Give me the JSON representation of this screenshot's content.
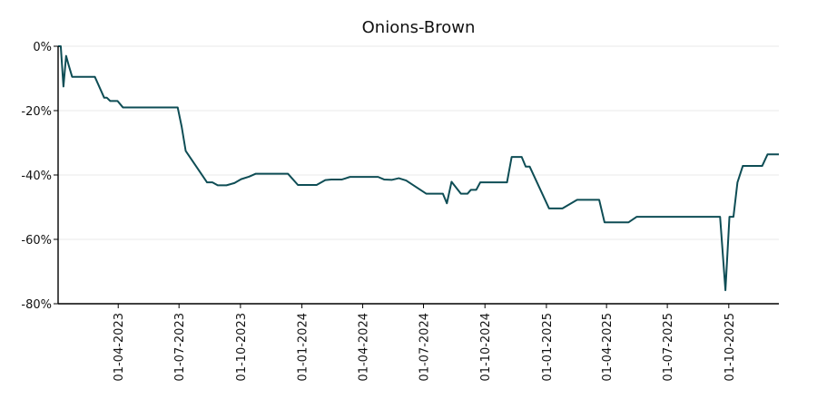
{
  "chart_data": {
    "type": "line",
    "title": "Onions-Brown",
    "xlabel": "",
    "ylabel": "",
    "ylim": [
      -80,
      0
    ],
    "xlim": [
      "2023-01-01",
      "2025-12-15"
    ],
    "grid": true,
    "line_color": "#0e4d55",
    "y_ticks": [
      0,
      -20,
      -40,
      -60,
      -80
    ],
    "y_tick_labels": [
      "0%",
      "-20%",
      "-40%",
      "-60%",
      "-80%"
    ],
    "x_ticks": [
      "2023-04-01",
      "2023-07-01",
      "2023-10-01",
      "2024-01-01",
      "2024-04-01",
      "2024-07-01",
      "2024-10-01",
      "2025-01-01",
      "2025-04-01",
      "2025-07-01",
      "2025-10-01"
    ],
    "x_tick_labels": [
      "01-04-2023",
      "01-07-2023",
      "01-10-2023",
      "01-01-2024",
      "01-04-2024",
      "01-07-2024",
      "01-10-2024",
      "01-01-2025",
      "01-04-2025",
      "01-07-2025",
      "01-10-2025"
    ],
    "series": [
      {
        "points": [
          [
            "2023-01-01",
            0
          ],
          [
            "2023-01-05",
            0
          ],
          [
            "2023-01-09",
            -12.5
          ],
          [
            "2023-01-13",
            -3
          ],
          [
            "2023-01-17",
            -6
          ],
          [
            "2023-01-22",
            -9.5
          ],
          [
            "2023-02-25",
            -9.5
          ],
          [
            "2023-03-11",
            -16
          ],
          [
            "2023-03-15",
            -16
          ],
          [
            "2023-03-20",
            -17
          ],
          [
            "2023-03-31",
            -17
          ],
          [
            "2023-04-08",
            -19
          ],
          [
            "2023-06-29",
            -19
          ],
          [
            "2023-07-05",
            -25
          ],
          [
            "2023-07-11",
            -32.5
          ],
          [
            "2023-08-12",
            -42.3
          ],
          [
            "2023-08-20",
            -42.3
          ],
          [
            "2023-08-28",
            -43.2
          ],
          [
            "2023-09-10",
            -43.2
          ],
          [
            "2023-09-22",
            -42.5
          ],
          [
            "2023-10-02",
            -41.3
          ],
          [
            "2023-10-14",
            -40.5
          ],
          [
            "2023-10-24",
            -39.6
          ],
          [
            "2023-12-11",
            -39.6
          ],
          [
            "2023-12-26",
            -43.1
          ],
          [
            "2024-01-23",
            -43.1
          ],
          [
            "2024-02-05",
            -41.6
          ],
          [
            "2024-02-14",
            -41.4
          ],
          [
            "2024-03-01",
            -41.4
          ],
          [
            "2024-03-13",
            -40.6
          ],
          [
            "2024-04-14",
            -40.6
          ],
          [
            "2024-04-24",
            -40.6
          ],
          [
            "2024-05-03",
            -41.4
          ],
          [
            "2024-05-15",
            -41.5
          ],
          [
            "2024-05-25",
            -41.0
          ],
          [
            "2024-06-05",
            -41.7
          ],
          [
            "2024-07-05",
            -45.8
          ],
          [
            "2024-07-30",
            -45.8
          ],
          [
            "2024-08-05",
            -48.8
          ],
          [
            "2024-08-12",
            -42.1
          ],
          [
            "2024-08-26",
            -45.8
          ],
          [
            "2024-09-05",
            -45.8
          ],
          [
            "2024-09-10",
            -44.6
          ],
          [
            "2024-09-18",
            -44.6
          ],
          [
            "2024-09-24",
            -42.3
          ],
          [
            "2024-11-03",
            -42.3
          ],
          [
            "2024-11-10",
            -34.4
          ],
          [
            "2024-11-25",
            -34.4
          ],
          [
            "2024-12-01",
            -37.4
          ],
          [
            "2024-12-07",
            -37.4
          ],
          [
            "2025-01-05",
            -50.4
          ],
          [
            "2025-01-25",
            -50.4
          ],
          [
            "2025-02-16",
            -47.7
          ],
          [
            "2025-03-21",
            -47.7
          ],
          [
            "2025-03-29",
            -54.7
          ],
          [
            "2025-05-04",
            -54.7
          ],
          [
            "2025-05-16",
            -53.0
          ],
          [
            "2025-09-18",
            -53.0
          ],
          [
            "2025-09-26",
            -75.8
          ],
          [
            "2025-10-02",
            -53.0
          ],
          [
            "2025-10-08",
            -53.0
          ],
          [
            "2025-10-14",
            -42.3
          ],
          [
            "2025-10-22",
            -37.2
          ],
          [
            "2025-11-20",
            -37.2
          ],
          [
            "2025-11-28",
            -33.6
          ],
          [
            "2025-12-15",
            -33.6
          ]
        ]
      }
    ]
  }
}
